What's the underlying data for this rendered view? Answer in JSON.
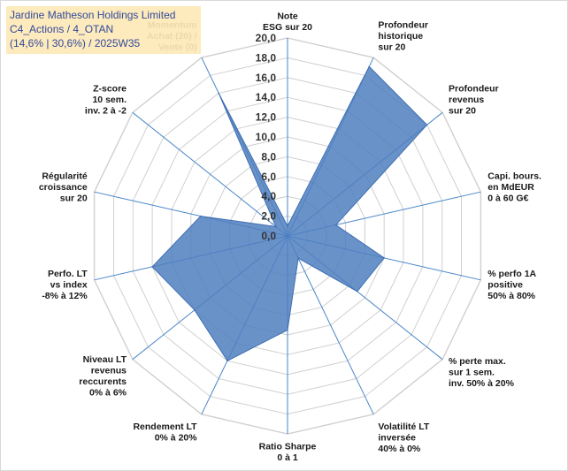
{
  "title_box": {
    "line1": "Jardine Matheson Holdings Limited",
    "line2": "C4_Actions / 4_OTAN",
    "line3": "(14,6% | 30,6%) / 2025W35"
  },
  "colors": {
    "fill": "#4f7fbf",
    "stroke": "#3f6fb0",
    "grid": "#d0d0d0",
    "spoke": "#4a86c8",
    "title_bg": "#fde9b8",
    "title_text": "#1f3a93"
  },
  "chart_data": {
    "type": "radar",
    "title": "",
    "rmin": 0,
    "rmax": 20,
    "tick_step": 2,
    "ticks": [
      "0,0",
      "2,0",
      "4,0",
      "6,0",
      "8,0",
      "10,0",
      "12,0",
      "14,0",
      "16,0",
      "18,0",
      "20,0"
    ],
    "axes": [
      {
        "label": [
          "Note",
          "ESG sur 20"
        ],
        "value": 1.0
      },
      {
        "label": [
          "Profondeur",
          "historique",
          "sur 20"
        ],
        "value": 19.0
      },
      {
        "label": [
          "Profondeur",
          "revenus",
          "sur 20"
        ],
        "value": 18.0
      },
      {
        "label": [
          "Capi. bours.",
          "en MdEUR",
          "0 à 60 G€"
        ],
        "value": 5.0
      },
      {
        "label": [
          "% perfo 1A",
          "positive",
          "50% à 80%"
        ],
        "value": 10.0
      },
      {
        "label": [
          "% perte max.",
          "sur 1 sem.",
          "inv. 50% à 20%"
        ],
        "value": 9.0
      },
      {
        "label": [
          "Volatilité LT",
          "inversée",
          "40% à 0%"
        ],
        "value": 2.5
      },
      {
        "label": [
          "Ratio Sharpe",
          "0 à 1"
        ],
        "value": 9.5
      },
      {
        "label": [
          "Rendement LT",
          "0% à 20%"
        ],
        "value": 14.0
      },
      {
        "label": [
          "Niveau LT",
          "revenus",
          "reccurents",
          "0% à 6%"
        ],
        "value": 12.0
      },
      {
        "label": [
          "Perfo. LT",
          "vs index",
          "-8% à 12%"
        ],
        "value": 14.0
      },
      {
        "label": [
          "Régularité",
          "croissance",
          "sur 20"
        ],
        "value": 9.0
      },
      {
        "label": [
          "Z-score",
          "10 sem.",
          "inv. 2 à -2"
        ],
        "value": 1.5
      },
      {
        "label": [
          "Momentum",
          "Achat (20) /",
          "Vente (0)"
        ],
        "value": 16.0
      }
    ]
  }
}
